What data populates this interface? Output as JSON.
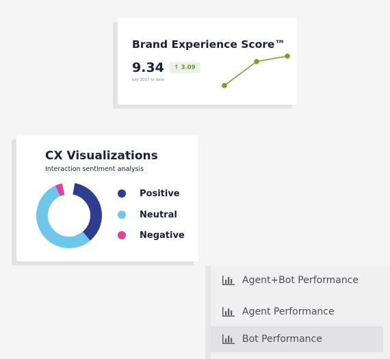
{
  "brand_card": {
    "title": "Brand Experience Score™",
    "score": "9.34",
    "change": "3.09",
    "date_label": "July 2022 to date",
    "trend_color": "#76a12c",
    "badge_text_color": "#6d9a2a"
  },
  "cx_card": {
    "title": "CX Visualizations",
    "subtitle": "Interaction sentiment analysis",
    "legend": [
      {
        "label": "Positive",
        "color": "#2d3e8f"
      },
      {
        "label": "Neutral",
        "color": "#6ec7ea"
      },
      {
        "label": "Negative",
        "color": "#e0449a"
      }
    ]
  },
  "menu": {
    "items": [
      {
        "label": "Agent+Bot Performance",
        "icon": "bar-chart-icon",
        "active": false
      },
      {
        "label": "Agent Performance",
        "icon": "bar-chart-icon",
        "active": false
      },
      {
        "label": "Bot Performance",
        "icon": "bar-chart-icon",
        "active": true
      }
    ]
  }
}
